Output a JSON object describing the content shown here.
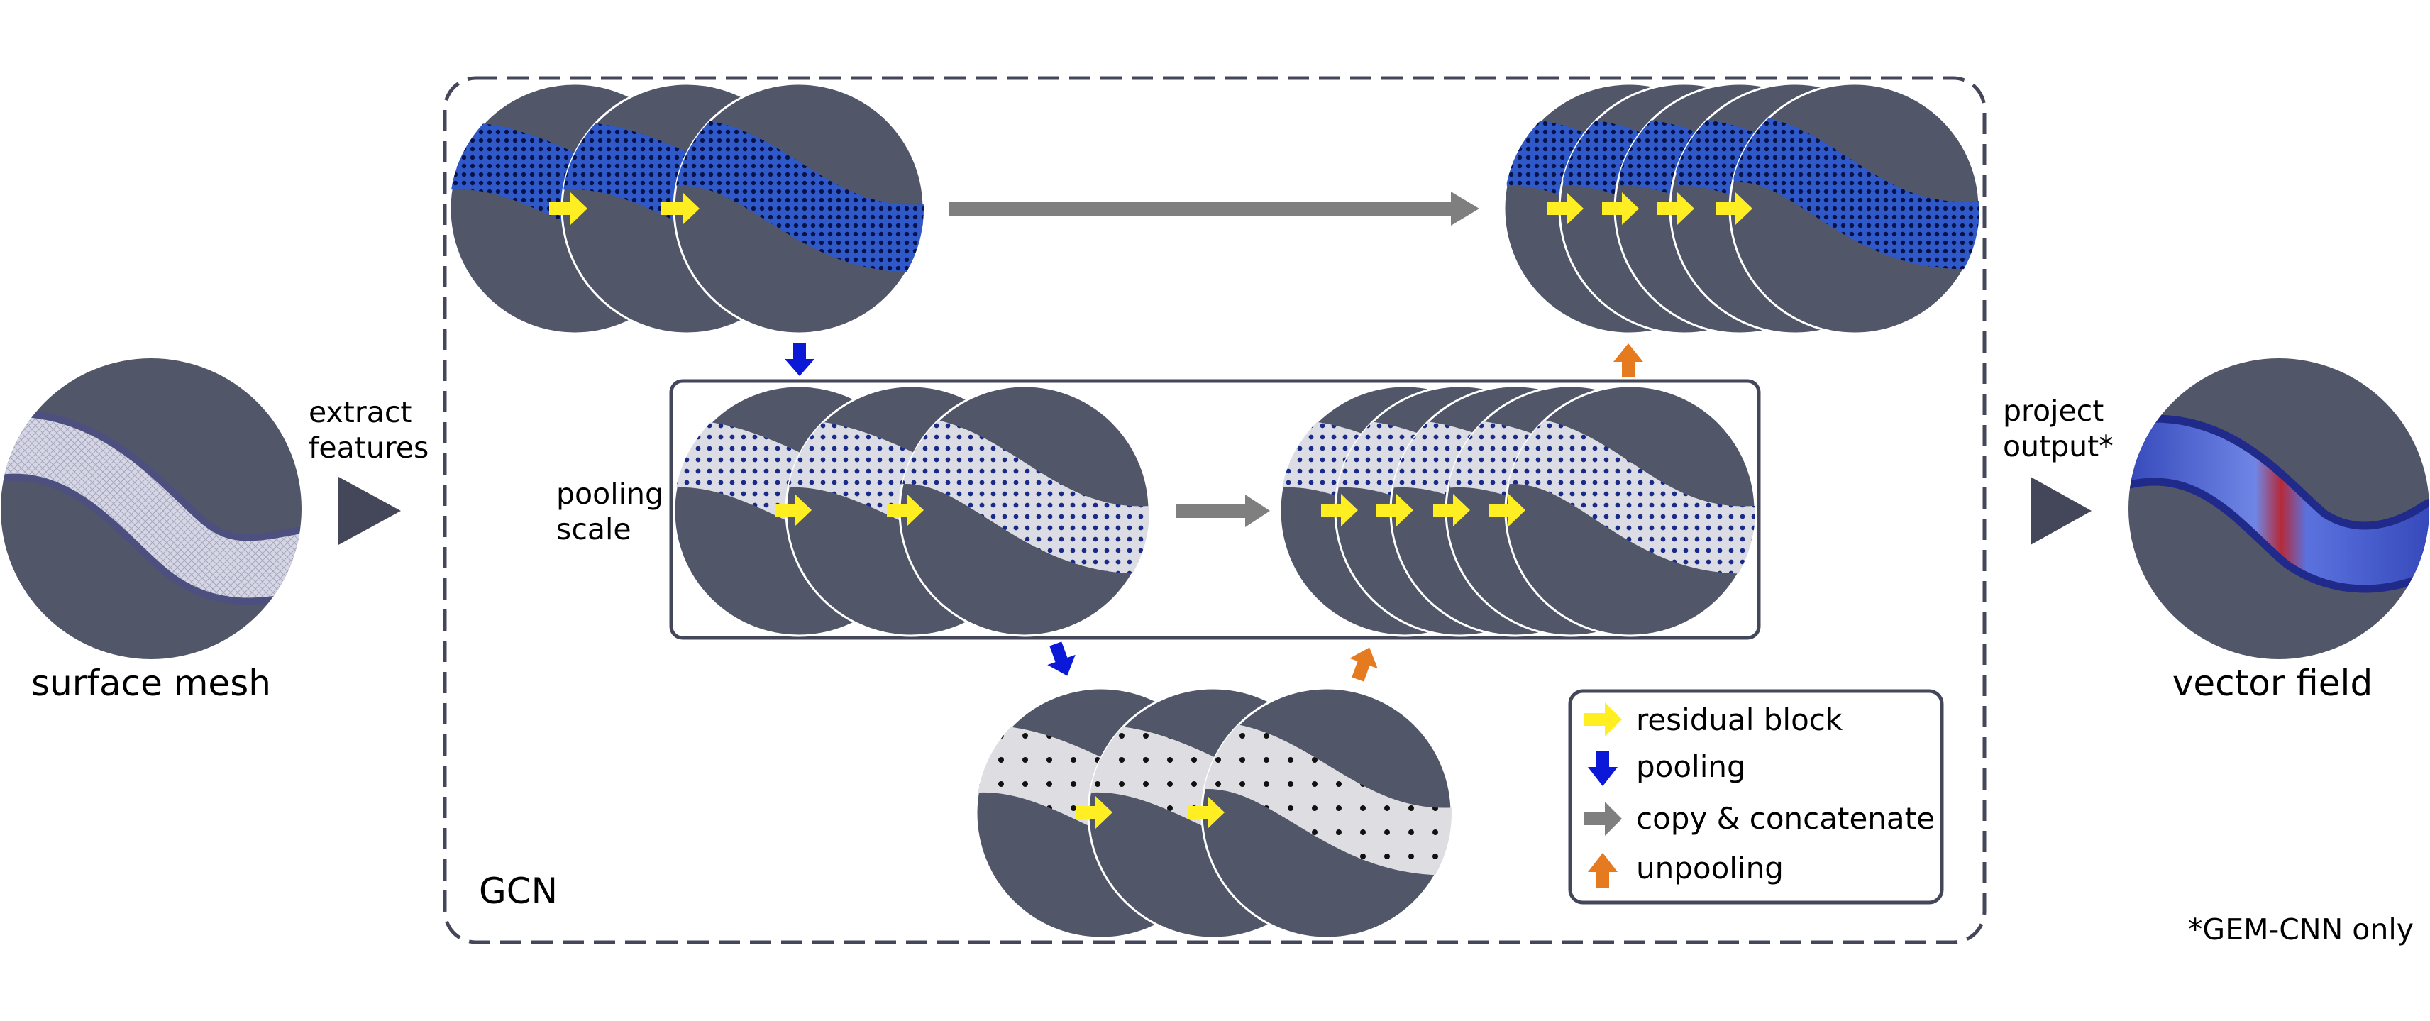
{
  "input_label": "surface mesh",
  "extract_label": [
    "extract",
    "features"
  ],
  "pooling_scale_label": [
    "pooling",
    "scale"
  ],
  "gcn_label": "GCN",
  "project_label": [
    "project",
    "output*"
  ],
  "output_label": "vector field",
  "footnote": "*GEM-CNN only",
  "legend": [
    {
      "label": "residual block",
      "icon": "yellow-arrow-right"
    },
    {
      "label": "pooling",
      "icon": "blue-arrow-down"
    },
    {
      "label": "copy & concatenate",
      "icon": "gray-arrow-right"
    },
    {
      "label": "unpooling",
      "icon": "orange-arrow-up"
    }
  ],
  "colors": {
    "disk_background": "#515669",
    "residual_block": "#ffee22",
    "pooling": "#0b18d8",
    "copy_concatenate": "#7f7f7f",
    "unpooling": "#e67a1f",
    "frame": "#44475a"
  }
}
